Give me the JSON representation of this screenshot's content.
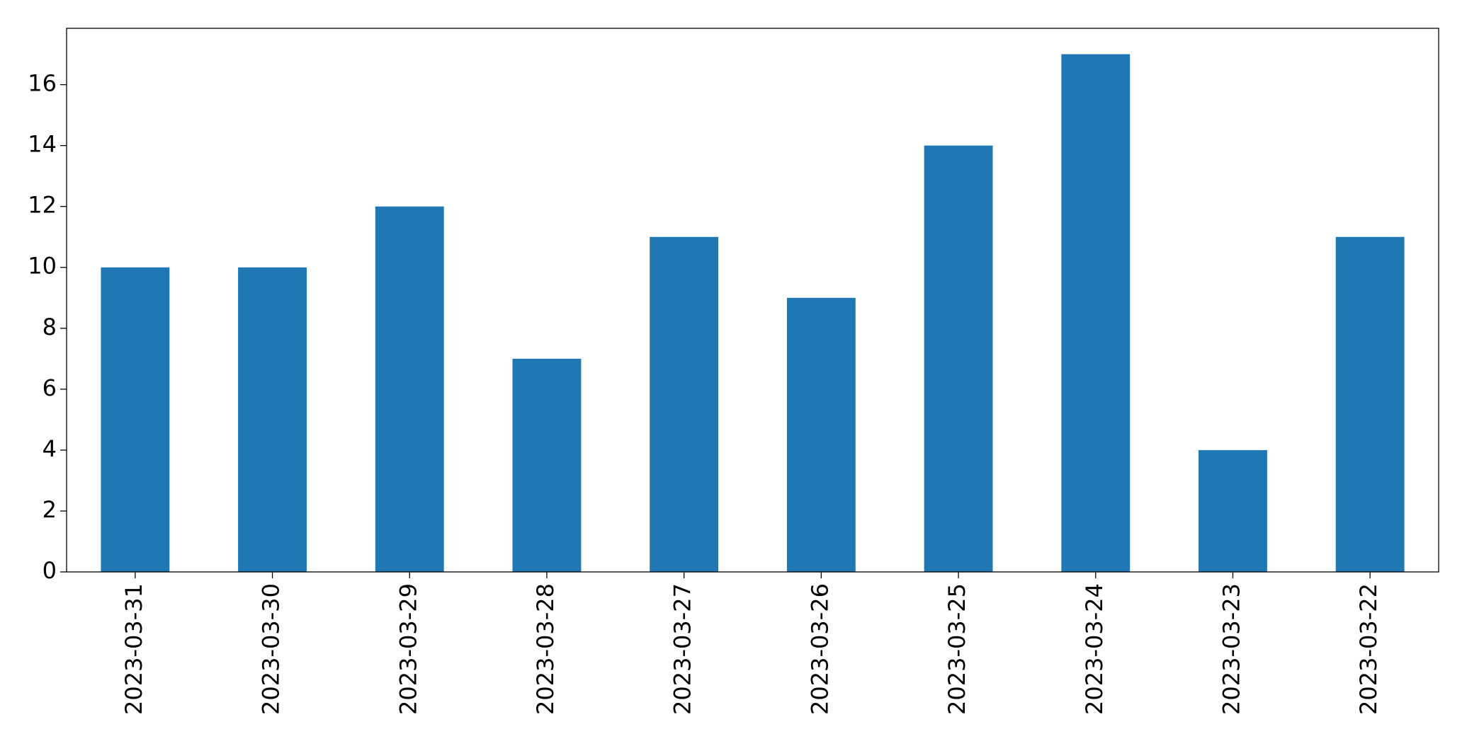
{
  "chart_data": {
    "type": "bar",
    "categories": [
      "2023-03-31",
      "2023-03-30",
      "2023-03-29",
      "2023-03-28",
      "2023-03-27",
      "2023-03-26",
      "2023-03-25",
      "2023-03-24",
      "2023-03-23",
      "2023-03-22"
    ],
    "values": [
      10,
      10,
      12,
      7,
      11,
      9,
      14,
      17,
      4,
      11
    ],
    "color": "#1f77b4",
    "ylim": [
      0,
      17.85
    ],
    "yticks": [
      0,
      2,
      4,
      6,
      8,
      10,
      12,
      14,
      16
    ],
    "grid": false
  }
}
